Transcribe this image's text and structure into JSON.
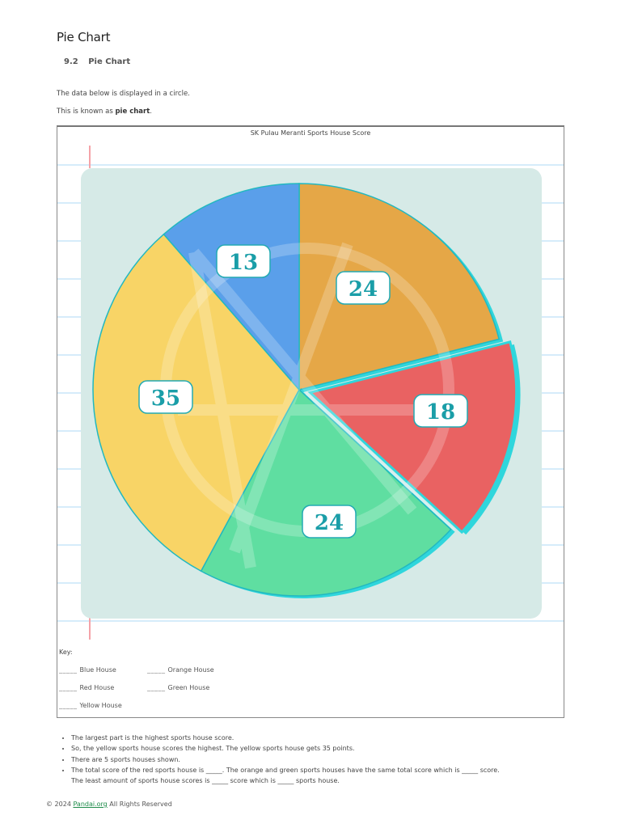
{
  "page": {
    "title": "Pie Chart",
    "section_number": "9.2",
    "section_title": "Pie Chart",
    "intro_line1": "The data below is displayed in a circle.",
    "intro_line2_prefix": "This is known as ",
    "intro_line2_bold": "pie chart",
    "intro_line2_suffix": "."
  },
  "chart_data": {
    "type": "pie",
    "title": "SK Pulau Meranti Sports House Score",
    "categories": [
      "Orange House",
      "Red House",
      "Green House",
      "Yellow House",
      "Blue House"
    ],
    "values": [
      24,
      18,
      24,
      35,
      13
    ],
    "colors": [
      "#e5a747",
      "#e96262",
      "#5fdea1",
      "#f8d466",
      "#5a9fea"
    ],
    "labels": [
      "24",
      "18",
      "24",
      "35",
      "13"
    ],
    "start_angle_deg": 0,
    "direction": "clockwise",
    "exploded": [
      "Red House"
    ],
    "legend_position": "below",
    "background_color": "#d6eae7",
    "outline_color": "#22b8c0"
  },
  "key": {
    "title": "Key:",
    "blank": "_____",
    "items": [
      {
        "label": "Blue House"
      },
      {
        "label": "Orange House"
      },
      {
        "label": "Red House"
      },
      {
        "label": "Green House"
      },
      {
        "label": "Yellow House"
      }
    ]
  },
  "notes": [
    "The largest part is the highest sports house score.",
    "So, the yellow sports house scores the highest. The yellow sports house gets 35 points.",
    "There are 5 sports houses shown.",
    "The total score of the red sports house is _____. The orange and green sports houses have the same total score which is _____ score.",
    "The least amount of sports house scores is _____ score which is _____ sports house."
  ],
  "footer": {
    "prefix": "© 2024 ",
    "link": "Pandai.org",
    "suffix": " All Rights Reserved"
  }
}
